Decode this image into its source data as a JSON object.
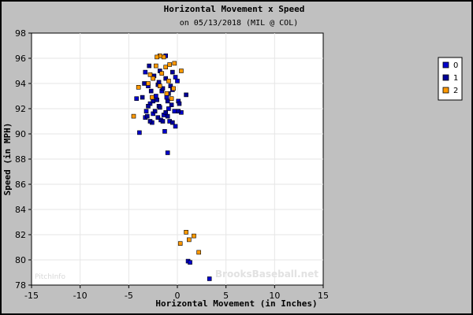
{
  "chart_data": {
    "type": "scatter",
    "title": "Horizontal Movement x Speed",
    "subtitle": "on 05/13/2018 (MIL @ COL)",
    "xlabel": "Horizontal Movement (in Inches)",
    "ylabel": "Speed (in MPH)",
    "xlim": [
      -15,
      15
    ],
    "ylim": [
      78,
      98
    ],
    "xticks": [
      -15,
      -10,
      -5,
      0,
      5,
      10,
      15
    ],
    "yticks": [
      78,
      80,
      82,
      84,
      86,
      88,
      90,
      92,
      94,
      96,
      98
    ],
    "grid": true,
    "legend_position": "right",
    "watermarks": [
      "PitchInfo",
      "BrooksBaseball.net"
    ],
    "series": [
      {
        "name": "0",
        "color": "#0000cc",
        "points": [
          [
            -1.2,
            96.2
          ],
          [
            -3.3,
            94.9
          ],
          [
            -0.2,
            94.5
          ],
          [
            0.0,
            94.2
          ],
          [
            -3.0,
            93.8
          ],
          [
            -1.6,
            93.4
          ],
          [
            -0.5,
            93.5
          ],
          [
            -2.2,
            93.0
          ],
          [
            -4.2,
            92.8
          ],
          [
            -1.1,
            92.9
          ],
          [
            0.1,
            92.6
          ],
          [
            -2.8,
            92.4
          ],
          [
            -1.9,
            92.2
          ],
          [
            -0.9,
            92.0
          ],
          [
            -3.2,
            91.8
          ],
          [
            -2.5,
            91.6
          ],
          [
            -1.4,
            91.5
          ],
          [
            -0.3,
            91.8
          ],
          [
            0.4,
            91.7
          ],
          [
            -3.3,
            91.3
          ],
          [
            -1.7,
            91.1
          ],
          [
            -0.8,
            91.0
          ],
          [
            -2.6,
            90.9
          ],
          [
            -0.2,
            90.6
          ],
          [
            -3.9,
            90.1
          ],
          [
            -1.3,
            90.2
          ],
          [
            -1.0,
            88.5
          ],
          [
            1.1,
            79.9
          ],
          [
            1.3,
            79.8
          ],
          [
            3.3,
            78.5
          ]
        ]
      },
      {
        "name": "1",
        "color": "#000099",
        "points": [
          [
            -2.9,
            95.4
          ],
          [
            -1.8,
            95.0
          ],
          [
            -0.5,
            94.9
          ],
          [
            -2.4,
            94.6
          ],
          [
            -1.2,
            94.4
          ],
          [
            -3.4,
            94.0
          ],
          [
            -2.0,
            93.9
          ],
          [
            -0.7,
            93.8
          ],
          [
            -1.5,
            93.6
          ],
          [
            -2.7,
            93.4
          ],
          [
            -0.9,
            93.2
          ],
          [
            0.9,
            93.1
          ],
          [
            -3.6,
            92.9
          ],
          [
            -2.1,
            92.7
          ],
          [
            -1.0,
            92.6
          ],
          [
            0.2,
            92.4
          ],
          [
            -3.0,
            92.2
          ],
          [
            -1.8,
            92.1
          ],
          [
            -0.6,
            92.3
          ],
          [
            -2.3,
            91.8
          ],
          [
            -1.2,
            91.7
          ],
          [
            0.1,
            91.8
          ],
          [
            -3.1,
            91.4
          ],
          [
            -2.0,
            91.3
          ],
          [
            -1.5,
            91.0
          ],
          [
            -0.5,
            90.9
          ],
          [
            -2.8,
            91.0
          ],
          [
            -1.0,
            91.4
          ],
          [
            -2.5,
            92.6
          ],
          [
            -1.9,
            94.1
          ]
        ]
      },
      {
        "name": "2",
        "color": "#ff9900",
        "points": [
          [
            -1.8,
            96.2
          ],
          [
            -1.4,
            96.1
          ],
          [
            -2.1,
            96.1
          ],
          [
            -0.8,
            95.5
          ],
          [
            -0.3,
            95.6
          ],
          [
            -1.2,
            95.3
          ],
          [
            -2.2,
            95.4
          ],
          [
            0.4,
            95.0
          ],
          [
            -2.8,
            94.7
          ],
          [
            -1.6,
            94.8
          ],
          [
            -2.5,
            94.4
          ],
          [
            -0.9,
            94.2
          ],
          [
            -3.0,
            94.0
          ],
          [
            -1.8,
            93.8
          ],
          [
            -4.0,
            93.7
          ],
          [
            -0.4,
            93.6
          ],
          [
            -1.1,
            93.2
          ],
          [
            -2.6,
            92.9
          ],
          [
            -0.6,
            92.8
          ],
          [
            -4.5,
            91.4
          ],
          [
            0.9,
            82.2
          ],
          [
            1.7,
            81.9
          ],
          [
            1.2,
            81.6
          ],
          [
            0.3,
            81.3
          ],
          [
            2.2,
            80.6
          ]
        ]
      }
    ]
  }
}
